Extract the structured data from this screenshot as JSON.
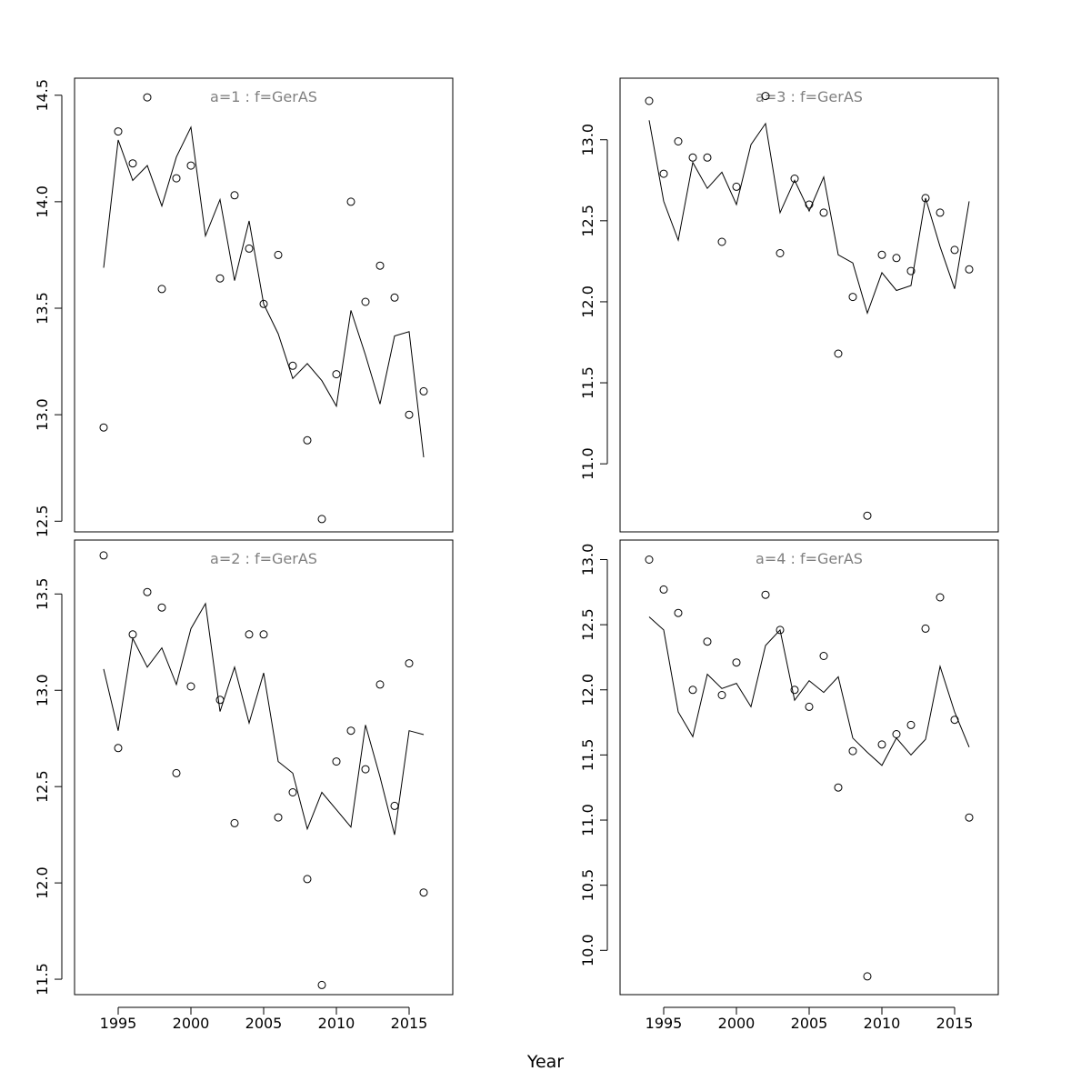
{
  "figure": {
    "xlabel": "Year"
  },
  "chart_data": [
    {
      "type": "line",
      "title": "a=1  :  f=GerAS",
      "xlabel": "Year",
      "ylabel": "",
      "xlim": [
        1992,
        2018
      ],
      "ylim": [
        12.45,
        14.58
      ],
      "x_ticks": [
        1995,
        2000,
        2005,
        2010,
        2015
      ],
      "y_ticks": [
        12.5,
        13.0,
        13.5,
        14.0,
        14.5
      ],
      "x": [
        1994,
        1995,
        1996,
        1997,
        1998,
        1999,
        2000,
        2001,
        2002,
        2003,
        2004,
        2005,
        2006,
        2007,
        2008,
        2009,
        2010,
        2011,
        2012,
        2013,
        2014,
        2015,
        2016
      ],
      "series": [
        {
          "role": "line",
          "values": [
            13.69,
            14.29,
            14.1,
            14.17,
            13.98,
            14.21,
            14.35,
            13.84,
            14.01,
            13.63,
            13.91,
            13.52,
            13.38,
            13.17,
            13.24,
            13.16,
            13.04,
            13.49,
            13.28,
            13.05,
            13.37,
            13.39,
            12.8
          ]
        },
        {
          "role": "points",
          "values": [
            12.94,
            14.33,
            14.18,
            14.49,
            13.59,
            14.11,
            14.17,
            null,
            13.64,
            14.03,
            13.78,
            13.52,
            13.75,
            13.23,
            12.88,
            12.51,
            13.19,
            14.0,
            13.53,
            13.7,
            13.55,
            13.0,
            13.11
          ]
        }
      ]
    },
    {
      "type": "line",
      "title": "a=3  :  f=GerAS",
      "xlabel": "Year",
      "ylabel": "",
      "xlim": [
        1992,
        2018
      ],
      "ylim": [
        10.58,
        13.38
      ],
      "x_ticks": [
        1995,
        2000,
        2005,
        2010,
        2015
      ],
      "y_ticks": [
        11.0,
        11.5,
        12.0,
        12.5,
        13.0
      ],
      "x": [
        1994,
        1995,
        1996,
        1997,
        1998,
        1999,
        2000,
        2001,
        2002,
        2003,
        2004,
        2005,
        2006,
        2007,
        2008,
        2009,
        2010,
        2011,
        2012,
        2013,
        2014,
        2015,
        2016
      ],
      "series": [
        {
          "role": "line",
          "values": [
            13.12,
            12.62,
            12.38,
            12.86,
            12.7,
            12.8,
            12.6,
            12.97,
            13.1,
            12.55,
            12.75,
            12.56,
            12.77,
            12.29,
            12.24,
            11.93,
            12.18,
            12.07,
            12.1,
            12.64,
            12.34,
            12.08,
            12.62
          ]
        },
        {
          "role": "points",
          "values": [
            13.24,
            12.79,
            12.99,
            12.89,
            12.89,
            12.37,
            12.71,
            null,
            13.27,
            12.3,
            12.76,
            12.6,
            12.55,
            11.68,
            12.03,
            10.68,
            12.29,
            12.27,
            12.19,
            12.64,
            12.55,
            12.32,
            12.2
          ]
        }
      ]
    },
    {
      "type": "line",
      "title": "a=2  :  f=GerAS",
      "xlabel": "Year",
      "ylabel": "",
      "xlim": [
        1992,
        2018
      ],
      "ylim": [
        11.42,
        13.78
      ],
      "x_ticks": [
        1995,
        2000,
        2005,
        2010,
        2015
      ],
      "y_ticks": [
        11.5,
        12.0,
        12.5,
        13.0,
        13.5
      ],
      "x": [
        1994,
        1995,
        1996,
        1997,
        1998,
        1999,
        2000,
        2001,
        2002,
        2003,
        2004,
        2005,
        2006,
        2007,
        2008,
        2009,
        2010,
        2011,
        2012,
        2013,
        2014,
        2015,
        2016
      ],
      "series": [
        {
          "role": "line",
          "values": [
            13.11,
            12.79,
            13.27,
            13.12,
            13.22,
            13.03,
            13.32,
            13.45,
            12.89,
            13.12,
            12.83,
            13.09,
            12.63,
            12.57,
            12.28,
            12.47,
            12.38,
            12.29,
            12.82,
            12.55,
            12.25,
            12.79,
            12.77
          ]
        },
        {
          "role": "points",
          "values": [
            13.7,
            12.7,
            13.29,
            13.51,
            13.43,
            12.57,
            13.02,
            null,
            12.95,
            12.31,
            13.29,
            13.29,
            12.34,
            12.47,
            12.02,
            11.47,
            12.63,
            12.79,
            12.59,
            13.03,
            12.4,
            13.14,
            11.95
          ]
        }
      ]
    },
    {
      "type": "line",
      "title": "a=4  :  f=GerAS",
      "xlabel": "Year",
      "ylabel": "",
      "xlim": [
        1992,
        2018
      ],
      "ylim": [
        9.66,
        13.15
      ],
      "x_ticks": [
        1995,
        2000,
        2005,
        2010,
        2015
      ],
      "y_ticks": [
        10.0,
        10.5,
        11.0,
        11.5,
        12.0,
        12.5,
        13.0
      ],
      "x": [
        1994,
        1995,
        1996,
        1997,
        1998,
        1999,
        2000,
        2001,
        2002,
        2003,
        2004,
        2005,
        2006,
        2007,
        2008,
        2009,
        2010,
        2011,
        2012,
        2013,
        2014,
        2015,
        2016
      ],
      "series": [
        {
          "role": "line",
          "values": [
            12.56,
            12.46,
            11.83,
            11.64,
            12.12,
            12.01,
            12.05,
            11.87,
            12.34,
            12.46,
            11.92,
            12.07,
            11.98,
            12.1,
            11.63,
            11.52,
            11.42,
            11.63,
            11.5,
            11.62,
            12.18,
            11.83,
            11.56
          ]
        },
        {
          "role": "points",
          "values": [
            13.0,
            12.77,
            12.59,
            12.0,
            12.37,
            11.96,
            12.21,
            null,
            12.73,
            12.46,
            12.0,
            11.87,
            12.26,
            11.25,
            11.53,
            9.8,
            11.58,
            11.66,
            11.73,
            12.47,
            12.71,
            11.77,
            11.02
          ]
        }
      ]
    }
  ]
}
